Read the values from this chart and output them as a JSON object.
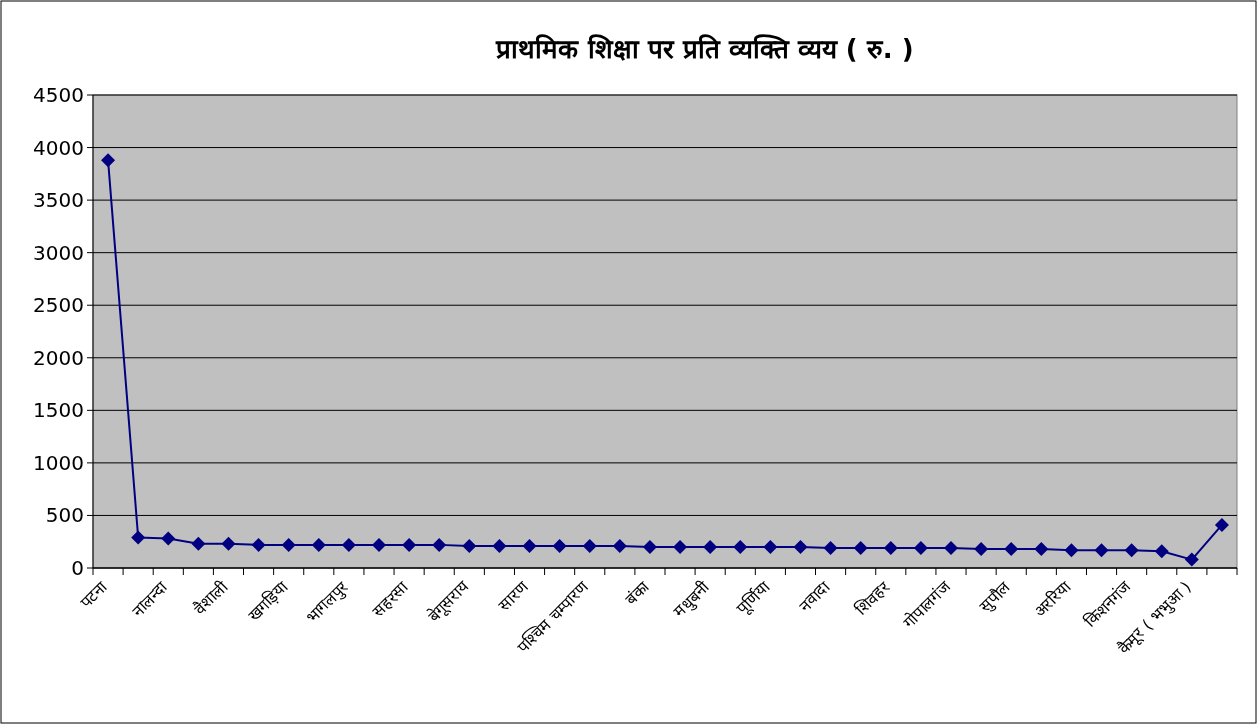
{
  "chart_data": {
    "type": "line",
    "title": "प्राथमिक शिक्षा पर प्रति व्यक्ति व्यय ( रु. )",
    "categories": [
      "पटना",
      null,
      "नालन्दा",
      null,
      "वैशाली",
      null,
      "खगड़िया",
      null,
      "भागलपुर",
      null,
      "सहरसा",
      null,
      "बेगूसराय",
      null,
      "सारण",
      null,
      "पश्चिम चम्पारण",
      null,
      "बंका",
      null,
      "मधुबनी",
      null,
      "पूर्णिया",
      null,
      "नवादा",
      null,
      "शिवहर",
      null,
      "गोपालगंज",
      null,
      "सुपौल",
      null,
      "अररिया",
      null,
      "किशनगंज",
      null,
      "कैमूर ( भभुआ )",
      null
    ],
    "values": [
      3880,
      290,
      280,
      230,
      230,
      220,
      220,
      220,
      220,
      220,
      220,
      220,
      210,
      210,
      210,
      210,
      210,
      210,
      200,
      200,
      200,
      200,
      200,
      200,
      190,
      190,
      190,
      190,
      190,
      180,
      180,
      180,
      170,
      170,
      170,
      160,
      80,
      410
    ],
    "color": "#000080",
    "marker": "diamond",
    "line_style": "solid",
    "ylim": [
      0,
      4500
    ],
    "yticks": [
      0,
      500,
      1000,
      1500,
      2000,
      2500,
      3000,
      3500,
      4000,
      4500
    ],
    "grid": "y"
  }
}
